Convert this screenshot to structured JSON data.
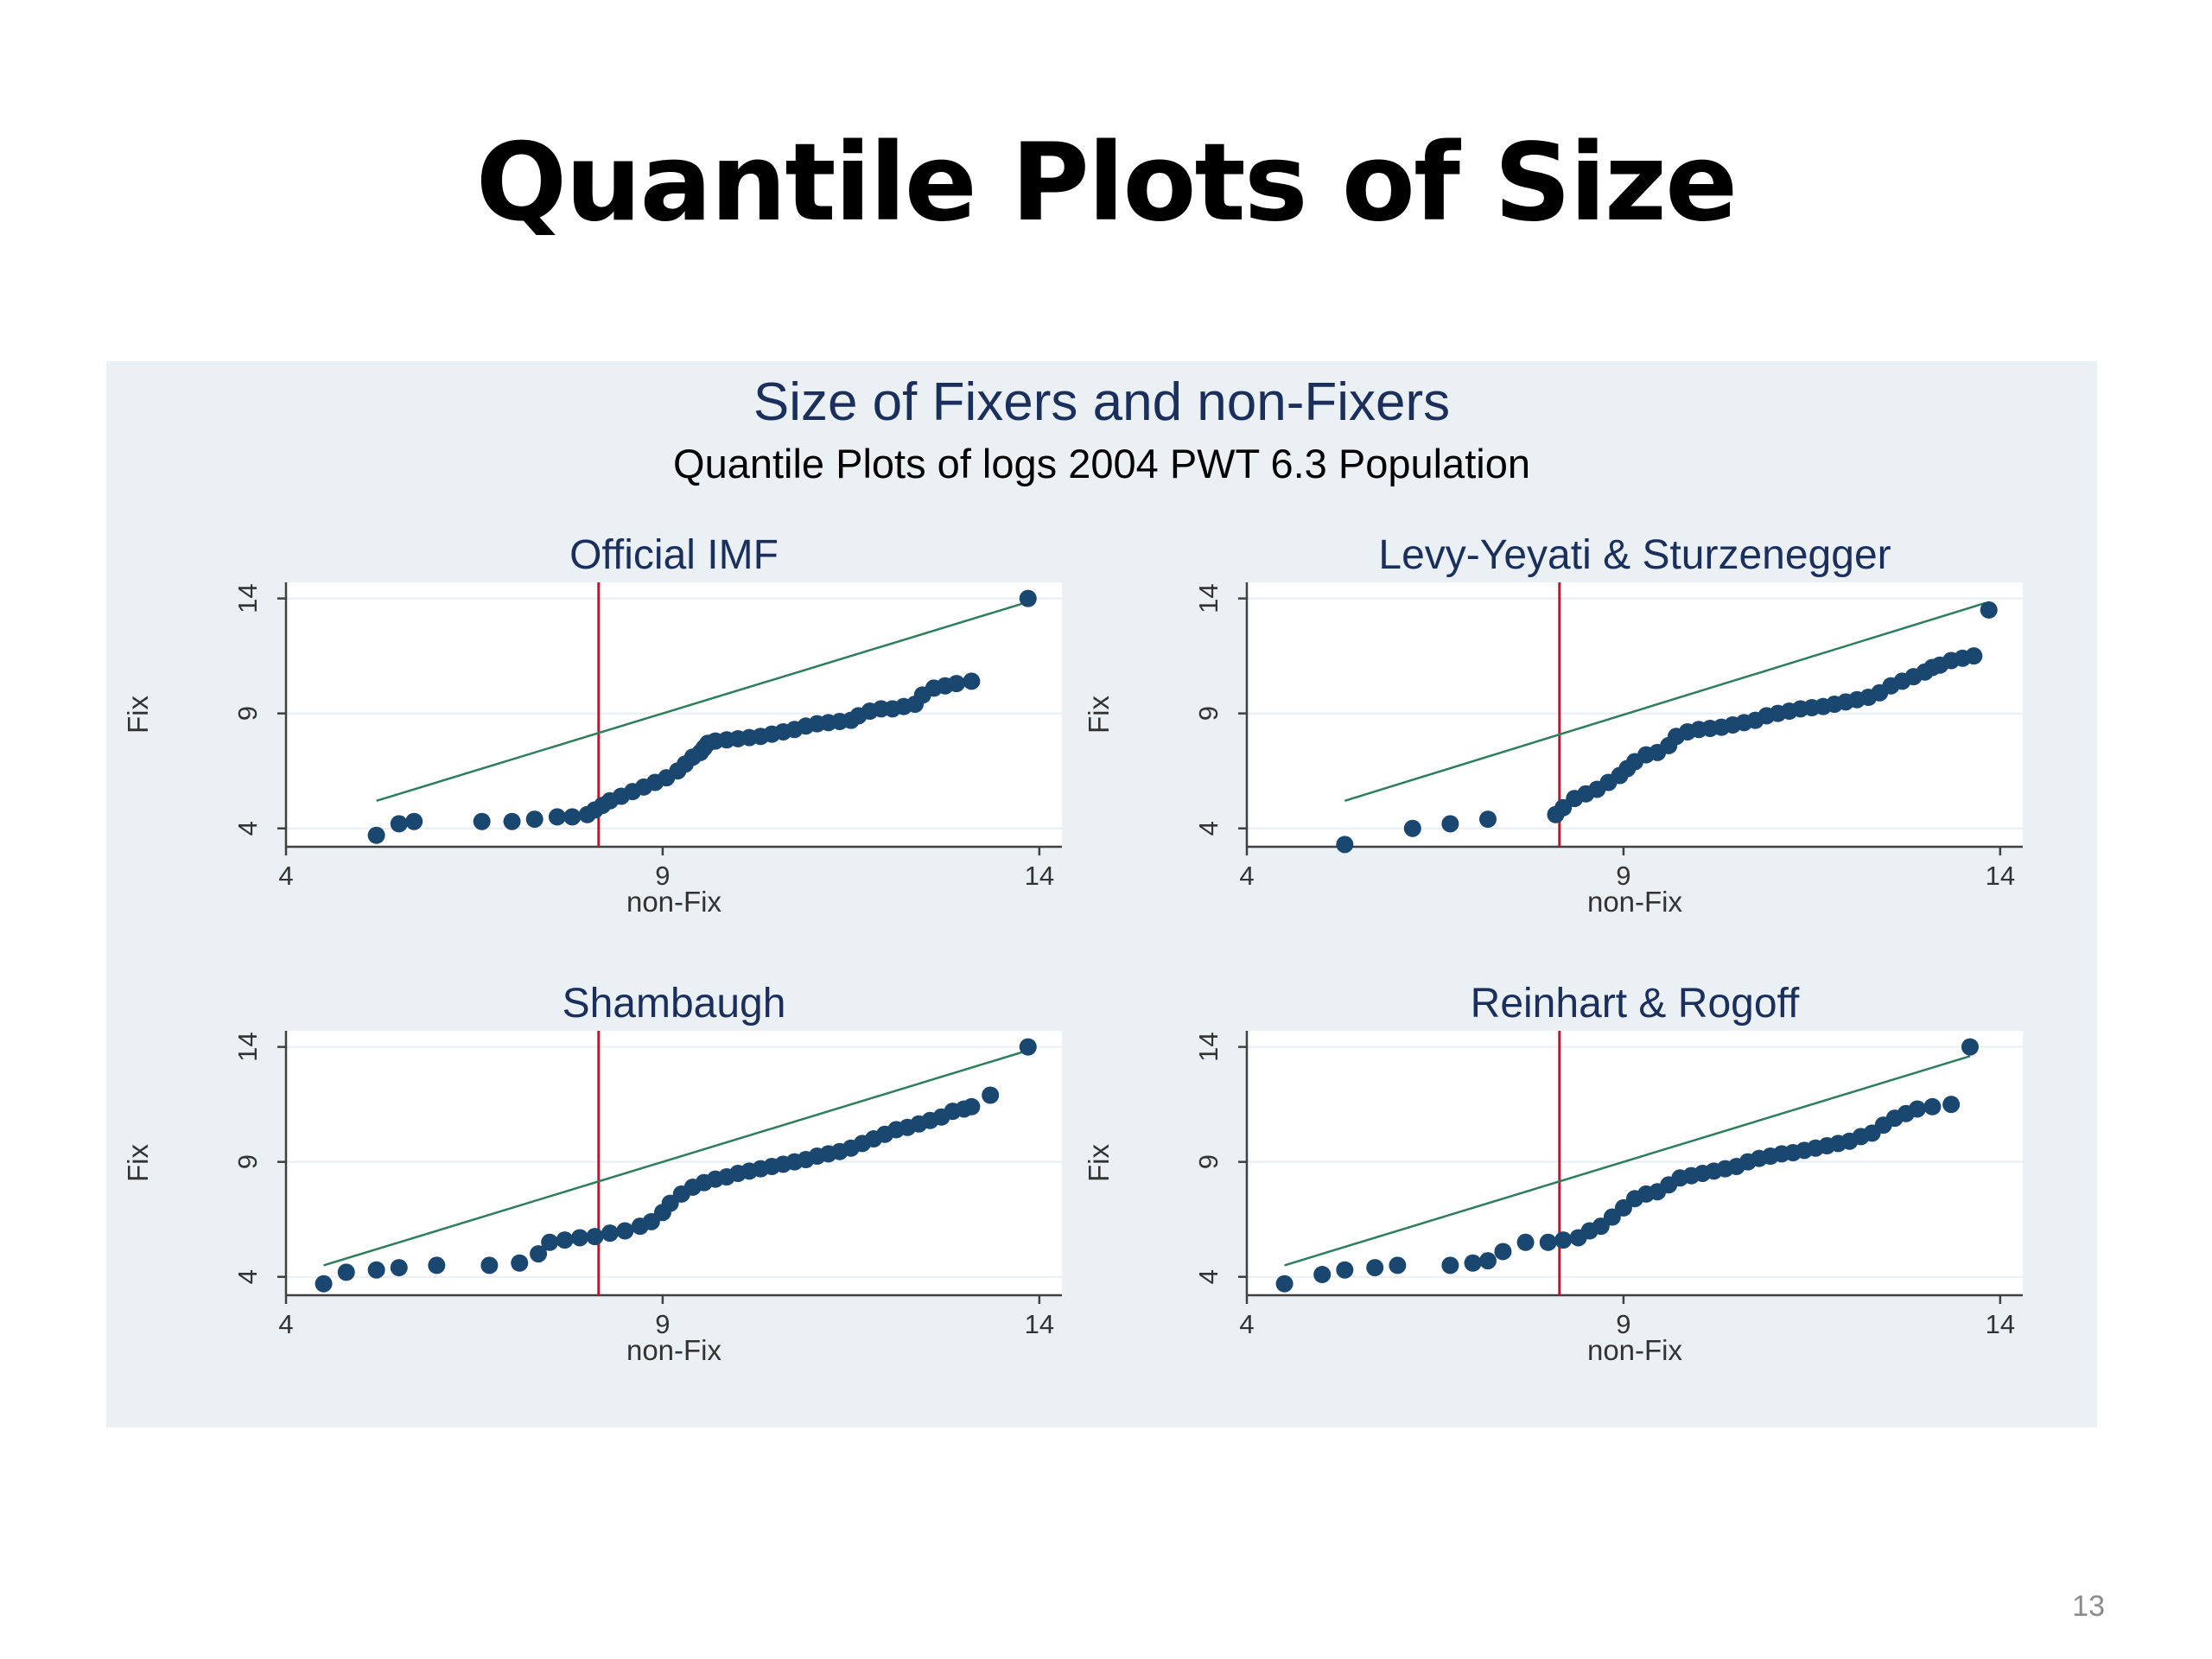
{
  "slide": {
    "title": "Quantile Plots of Size",
    "page_number": "13"
  },
  "figure": {
    "title": "Size of Fixers and non-Fixers",
    "subtitle": "Quantile Plots of logs 2004 PWT 6.3 Population"
  },
  "colors": {
    "panel_background": "#eaf0f4",
    "plot_background": "#ffffff",
    "marker": "#1a476f",
    "reference_line": "#2e7d5b",
    "vertical_line": "#c8102e",
    "title_text": "#1a2f5c",
    "axis": "#404040",
    "grid": "#e8eef2"
  },
  "chart_data": [
    {
      "type": "scatter",
      "title": "Official IMF",
      "xlabel": "non-Fix",
      "ylabel": "Fix",
      "xlim": [
        4,
        14.3
      ],
      "ylim": [
        3.2,
        14.7
      ],
      "xticks": [
        4,
        9,
        14
      ],
      "yticks": [
        4,
        9,
        14
      ],
      "grid": true,
      "vline_x": 8.15,
      "reference_line": [
        [
          5.2,
          5.2
        ],
        [
          13.9,
          13.9
        ]
      ],
      "points": [
        [
          5.2,
          3.7
        ],
        [
          5.5,
          4.2
        ],
        [
          5.7,
          4.3
        ],
        [
          6.6,
          4.3
        ],
        [
          7.0,
          4.3
        ],
        [
          7.3,
          4.4
        ],
        [
          7.6,
          4.5
        ],
        [
          7.8,
          4.5
        ],
        [
          8.0,
          4.6
        ],
        [
          8.1,
          4.8
        ],
        [
          8.2,
          5.0
        ],
        [
          8.3,
          5.2
        ],
        [
          8.45,
          5.4
        ],
        [
          8.6,
          5.6
        ],
        [
          8.75,
          5.8
        ],
        [
          8.9,
          6.0
        ],
        [
          9.05,
          6.2
        ],
        [
          9.2,
          6.5
        ],
        [
          9.3,
          6.8
        ],
        [
          9.4,
          7.1
        ],
        [
          9.5,
          7.3
        ],
        [
          9.55,
          7.5
        ],
        [
          9.6,
          7.7
        ],
        [
          9.7,
          7.8
        ],
        [
          9.85,
          7.85
        ],
        [
          10.0,
          7.9
        ],
        [
          10.15,
          7.95
        ],
        [
          10.3,
          8.0
        ],
        [
          10.45,
          8.1
        ],
        [
          10.6,
          8.2
        ],
        [
          10.75,
          8.3
        ],
        [
          10.9,
          8.45
        ],
        [
          11.05,
          8.55
        ],
        [
          11.2,
          8.6
        ],
        [
          11.35,
          8.65
        ],
        [
          11.5,
          8.7
        ],
        [
          11.6,
          8.9
        ],
        [
          11.75,
          9.1
        ],
        [
          11.9,
          9.2
        ],
        [
          12.05,
          9.2
        ],
        [
          12.2,
          9.3
        ],
        [
          12.35,
          9.4
        ],
        [
          12.45,
          9.8
        ],
        [
          12.6,
          10.1
        ],
        [
          12.75,
          10.2
        ],
        [
          12.9,
          10.3
        ],
        [
          13.1,
          10.4
        ],
        [
          13.85,
          14.0
        ]
      ]
    },
    {
      "type": "scatter",
      "title": "Levy-Yeyati & Sturzenegger",
      "xlabel": "non-Fix",
      "ylabel": "Fix",
      "xlim": [
        4,
        14.3
      ],
      "ylim": [
        3.2,
        14.7
      ],
      "xticks": [
        4,
        9,
        14
      ],
      "yticks": [
        4,
        9,
        14
      ],
      "grid": true,
      "vline_x": 8.15,
      "reference_line": [
        [
          5.3,
          5.2
        ],
        [
          13.8,
          13.8
        ]
      ],
      "points": [
        [
          5.3,
          3.3
        ],
        [
          6.2,
          4.0
        ],
        [
          6.7,
          4.2
        ],
        [
          7.2,
          4.4
        ],
        [
          8.1,
          4.6
        ],
        [
          8.2,
          4.9
        ],
        [
          8.35,
          5.3
        ],
        [
          8.5,
          5.5
        ],
        [
          8.65,
          5.7
        ],
        [
          8.8,
          6.0
        ],
        [
          8.95,
          6.3
        ],
        [
          9.05,
          6.6
        ],
        [
          9.15,
          6.9
        ],
        [
          9.3,
          7.2
        ],
        [
          9.45,
          7.3
        ],
        [
          9.6,
          7.6
        ],
        [
          9.7,
          8.0
        ],
        [
          9.85,
          8.2
        ],
        [
          10.0,
          8.3
        ],
        [
          10.15,
          8.35
        ],
        [
          10.3,
          8.4
        ],
        [
          10.45,
          8.5
        ],
        [
          10.6,
          8.6
        ],
        [
          10.75,
          8.7
        ],
        [
          10.9,
          8.9
        ],
        [
          11.05,
          9.0
        ],
        [
          11.2,
          9.1
        ],
        [
          11.35,
          9.2
        ],
        [
          11.5,
          9.25
        ],
        [
          11.65,
          9.3
        ],
        [
          11.8,
          9.4
        ],
        [
          11.95,
          9.5
        ],
        [
          12.1,
          9.6
        ],
        [
          12.25,
          9.7
        ],
        [
          12.4,
          9.9
        ],
        [
          12.55,
          10.2
        ],
        [
          12.7,
          10.4
        ],
        [
          12.85,
          10.6
        ],
        [
          13.0,
          10.8
        ],
        [
          13.1,
          11.0
        ],
        [
          13.2,
          11.1
        ],
        [
          13.35,
          11.3
        ],
        [
          13.5,
          11.4
        ],
        [
          13.65,
          11.5
        ],
        [
          13.85,
          13.5
        ]
      ]
    },
    {
      "type": "scatter",
      "title": "Shambaugh",
      "xlabel": "non-Fix",
      "ylabel": "Fix",
      "xlim": [
        4,
        14.3
      ],
      "ylim": [
        3.2,
        14.7
      ],
      "xticks": [
        4,
        9,
        14
      ],
      "yticks": [
        4,
        9,
        14
      ],
      "grid": true,
      "vline_x": 8.15,
      "reference_line": [
        [
          4.5,
          4.5
        ],
        [
          13.85,
          13.85
        ]
      ],
      "points": [
        [
          4.5,
          3.7
        ],
        [
          4.8,
          4.2
        ],
        [
          5.2,
          4.3
        ],
        [
          5.5,
          4.4
        ],
        [
          6.0,
          4.5
        ],
        [
          6.7,
          4.5
        ],
        [
          7.1,
          4.6
        ],
        [
          7.35,
          5.0
        ],
        [
          7.5,
          5.5
        ],
        [
          7.7,
          5.6
        ],
        [
          7.9,
          5.7
        ],
        [
          8.1,
          5.75
        ],
        [
          8.3,
          5.9
        ],
        [
          8.5,
          6.0
        ],
        [
          8.7,
          6.2
        ],
        [
          8.85,
          6.4
        ],
        [
          9.0,
          6.8
        ],
        [
          9.1,
          7.2
        ],
        [
          9.25,
          7.6
        ],
        [
          9.4,
          7.9
        ],
        [
          9.55,
          8.1
        ],
        [
          9.7,
          8.25
        ],
        [
          9.85,
          8.35
        ],
        [
          10.0,
          8.5
        ],
        [
          10.15,
          8.6
        ],
        [
          10.3,
          8.7
        ],
        [
          10.45,
          8.8
        ],
        [
          10.6,
          8.9
        ],
        [
          10.75,
          9.0
        ],
        [
          10.9,
          9.1
        ],
        [
          11.05,
          9.25
        ],
        [
          11.2,
          9.35
        ],
        [
          11.35,
          9.45
        ],
        [
          11.5,
          9.6
        ],
        [
          11.65,
          9.8
        ],
        [
          11.8,
          10.0
        ],
        [
          11.95,
          10.2
        ],
        [
          12.1,
          10.4
        ],
        [
          12.25,
          10.5
        ],
        [
          12.4,
          10.65
        ],
        [
          12.55,
          10.8
        ],
        [
          12.7,
          10.95
        ],
        [
          12.85,
          11.2
        ],
        [
          13.0,
          11.3
        ],
        [
          13.1,
          11.4
        ],
        [
          13.35,
          11.9
        ],
        [
          13.85,
          14.0
        ]
      ]
    },
    {
      "type": "scatter",
      "title": "Reinhart & Rogoff",
      "xlabel": "non-Fix",
      "ylabel": "Fix",
      "xlim": [
        4,
        14.3
      ],
      "ylim": [
        3.2,
        14.7
      ],
      "xticks": [
        4,
        9,
        14
      ],
      "yticks": [
        4,
        9,
        14
      ],
      "grid": true,
      "vline_x": 8.15,
      "reference_line": [
        [
          4.5,
          4.5
        ],
        [
          13.6,
          13.6
        ]
      ],
      "points": [
        [
          4.5,
          3.7
        ],
        [
          5.0,
          4.1
        ],
        [
          5.3,
          4.3
        ],
        [
          5.7,
          4.4
        ],
        [
          6.0,
          4.5
        ],
        [
          6.7,
          4.5
        ],
        [
          7.0,
          4.6
        ],
        [
          7.2,
          4.7
        ],
        [
          7.4,
          5.1
        ],
        [
          7.7,
          5.5
        ],
        [
          8.0,
          5.5
        ],
        [
          8.2,
          5.6
        ],
        [
          8.4,
          5.7
        ],
        [
          8.55,
          6.0
        ],
        [
          8.7,
          6.2
        ],
        [
          8.85,
          6.6
        ],
        [
          9.0,
          7.0
        ],
        [
          9.15,
          7.4
        ],
        [
          9.3,
          7.6
        ],
        [
          9.45,
          7.7
        ],
        [
          9.6,
          8.0
        ],
        [
          9.75,
          8.3
        ],
        [
          9.9,
          8.4
        ],
        [
          10.05,
          8.5
        ],
        [
          10.2,
          8.6
        ],
        [
          10.35,
          8.7
        ],
        [
          10.5,
          8.8
        ],
        [
          10.65,
          9.0
        ],
        [
          10.8,
          9.15
        ],
        [
          10.95,
          9.25
        ],
        [
          11.1,
          9.35
        ],
        [
          11.25,
          9.4
        ],
        [
          11.4,
          9.5
        ],
        [
          11.55,
          9.6
        ],
        [
          11.7,
          9.7
        ],
        [
          11.85,
          9.8
        ],
        [
          12.0,
          9.9
        ],
        [
          12.15,
          10.1
        ],
        [
          12.3,
          10.25
        ],
        [
          12.45,
          10.6
        ],
        [
          12.6,
          10.9
        ],
        [
          12.75,
          11.1
        ],
        [
          12.9,
          11.3
        ],
        [
          13.1,
          11.4
        ],
        [
          13.35,
          11.5
        ],
        [
          13.6,
          14.0
        ]
      ]
    }
  ]
}
